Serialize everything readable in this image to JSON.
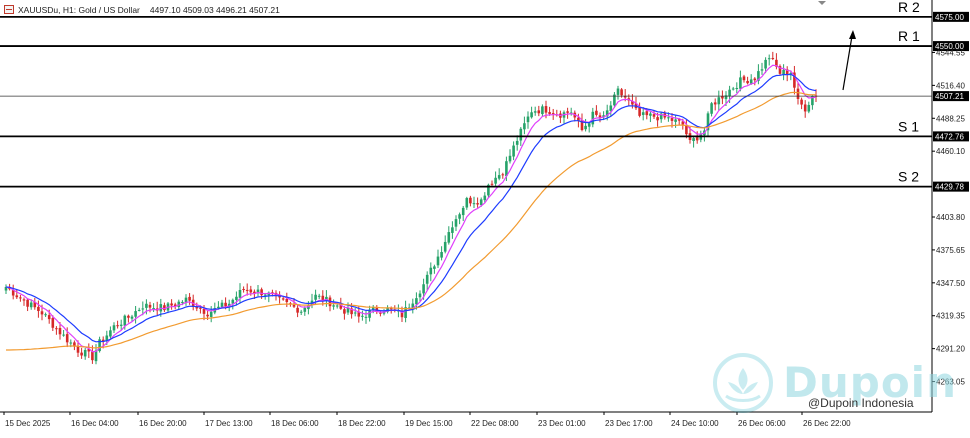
{
  "header": {
    "symbol": "XAUUSDu, H1:  Gold / US Dollar",
    "ohlc": "4497.10 4509.03 4496.21 4507.21"
  },
  "credit": "@Dupoin Indonesia",
  "watermark_text": "Dupoin",
  "colors": {
    "bull": "#26a269",
    "bear": "#d62828",
    "ma_fast": "#e040fb",
    "ma_mid": "#1e3cff",
    "ma_slow": "#f29b30",
    "level": "#000000",
    "current": "#333333",
    "arrow": "#000000"
  },
  "chart_data": {
    "type": "candlestick",
    "title": "XAUUSDu, H1: Gold / US Dollar",
    "ylim": [
      4237.0,
      4586.0
    ],
    "y_ticks": [
      "4263.05",
      "4291.20",
      "4319.35",
      "4347.50",
      "4375.65",
      "4403.80",
      "4460.10",
      "4488.25",
      "4516.40",
      "4544.55"
    ],
    "x_ticks": [
      "15 Dec 2025",
      "16 Dec 04:00",
      "16 Dec 20:00",
      "17 Dec 13:00",
      "18 Dec 06:00",
      "18 Dec 22:00",
      "19 Dec 15:00",
      "22 Dec 08:00",
      "23 Dec 01:00",
      "23 Dec 17:00",
      "24 Dec 10:00",
      "26 Dec 06:00",
      "26 Dec 22:00"
    ],
    "levels": [
      {
        "name": "R 2",
        "value": 4575.0,
        "label": "4575.00"
      },
      {
        "name": "R 1",
        "value": 4550.0,
        "label": "4550.00"
      },
      {
        "name": "S 1",
        "value": 4472.76,
        "label": "4472.76"
      },
      {
        "name": "S 2",
        "value": 4429.78,
        "label": "4429.78"
      }
    ],
    "current_price": {
      "value": 4507.21,
      "label": "4507.21"
    },
    "anchors": [
      [
        0,
        4344
      ],
      [
        6,
        4330
      ],
      [
        10,
        4322
      ],
      [
        16,
        4302
      ],
      [
        20,
        4290
      ],
      [
        24,
        4284
      ],
      [
        26,
        4296
      ],
      [
        30,
        4310
      ],
      [
        34,
        4318
      ],
      [
        38,
        4328
      ],
      [
        44,
        4326
      ],
      [
        50,
        4333
      ],
      [
        56,
        4322
      ],
      [
        62,
        4330
      ],
      [
        66,
        4342
      ],
      [
        72,
        4339
      ],
      [
        76,
        4332
      ],
      [
        82,
        4324
      ],
      [
        86,
        4336
      ],
      [
        90,
        4331
      ],
      [
        94,
        4324
      ],
      [
        98,
        4318
      ],
      [
        102,
        4324
      ],
      [
        106,
        4325
      ],
      [
        110,
        4320
      ],
      [
        116,
        4346
      ],
      [
        120,
        4370
      ],
      [
        124,
        4398
      ],
      [
        128,
        4418
      ],
      [
        132,
        4418
      ],
      [
        134,
        4432
      ],
      [
        138,
        4443
      ],
      [
        142,
        4470
      ],
      [
        146,
        4495
      ],
      [
        150,
        4496
      ],
      [
        154,
        4492
      ],
      [
        157,
        4494
      ],
      [
        160,
        4478
      ],
      [
        163,
        4491
      ],
      [
        166,
        4488
      ],
      [
        170,
        4511
      ],
      [
        172,
        4506
      ],
      [
        176,
        4490
      ],
      [
        180,
        4490
      ],
      [
        184,
        4488
      ],
      [
        188,
        4483
      ],
      [
        190,
        4467
      ],
      [
        194,
        4478
      ],
      [
        196,
        4500
      ],
      [
        200,
        4510
      ],
      [
        204,
        4520
      ],
      [
        208,
        4523
      ],
      [
        212,
        4541
      ],
      [
        215,
        4527
      ],
      [
        218,
        4528
      ],
      [
        220,
        4502
      ],
      [
        222,
        4497
      ],
      [
        224,
        4507
      ]
    ],
    "series": [
      {
        "name": "MA fast",
        "role": "ma_fast"
      },
      {
        "name": "MA mid",
        "role": "ma_mid"
      },
      {
        "name": "MA slow",
        "role": "ma_slow"
      }
    ]
  }
}
